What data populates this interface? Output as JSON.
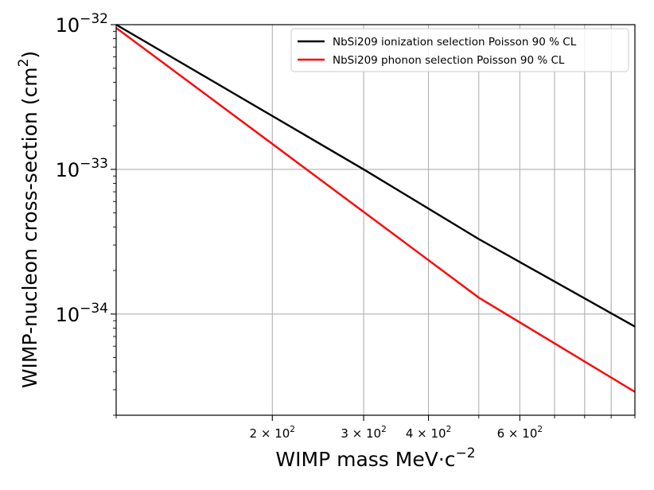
{
  "chart_data": {
    "type": "line",
    "xscale": "log",
    "yscale": "log",
    "xlim": [
      100,
      1000
    ],
    "ylim": [
      2e-35,
      1e-32
    ],
    "xlabel_main": "WIMP mass MeV·c",
    "xlabel_exp": "−2",
    "ylabel_main": "WIMP-nucleon cross-section (cm",
    "ylabel_exp": "2",
    "ylabel_close": ")",
    "grid": true,
    "legend_position": "top-right",
    "x_major_ticks": [
      {
        "value": 200,
        "mant": "2 × 10",
        "exp": "2"
      },
      {
        "value": 300,
        "mant": "3 × 10",
        "exp": "2"
      },
      {
        "value": 400,
        "mant": "4 × 10",
        "exp": "2"
      },
      {
        "value": 600,
        "mant": "6 × 10",
        "exp": "2"
      }
    ],
    "x_minor_ticks": [
      100,
      500,
      700,
      800,
      900,
      1000
    ],
    "y_major_ticks": [
      {
        "value": 1e-32,
        "base": "10",
        "exp": "−32"
      },
      {
        "value": 1e-33,
        "base": "10",
        "exp": "−33"
      },
      {
        "value": 1e-34,
        "base": "10",
        "exp": "−34"
      }
    ],
    "series": [
      {
        "name": "NbSi209 ionization selection Poisson 90 % CL",
        "color": "#000000",
        "x": [
          100,
          300,
          500,
          1000
        ],
        "y": [
          1e-32,
          1e-33,
          3.3e-34,
          8.2e-35
        ]
      },
      {
        "name": "NbSi209 phonon selection Poisson 90 % CL",
        "color": "#ff0000",
        "x": [
          100,
          200,
          500,
          1000
        ],
        "y": [
          9.5e-33,
          1.5e-33,
          1.3e-34,
          2.9e-35
        ]
      }
    ]
  }
}
